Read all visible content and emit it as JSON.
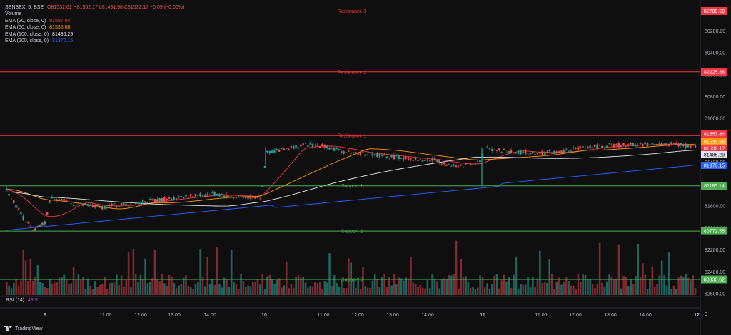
{
  "header": {
    "symbol_line": "SENSEX, 5, BSE",
    "ohlc": "O81532.61 H81552.17 L81491.98 C81532.17 −0.09 (−0.00%)",
    "volume_label": "Volume"
  },
  "ema_legend": [
    {
      "label": "EMA (20, close, 0)",
      "value": "81557.84",
      "color": "#f23645"
    },
    {
      "label": "EMA (50, close, 0)",
      "value": "81535.68",
      "color": "#ff9800"
    },
    {
      "label": "EMA (100, close, 0)",
      "value": "81486.29",
      "color": "#e0e3eb"
    },
    {
      "label": "EMA (200, close, 0)",
      "value": "81370.15",
      "color": "#2962ff"
    }
  ],
  "rsi_label": "RSI (14)",
  "rsi_value": "43.91",
  "brand": "TradingView",
  "colors": {
    "up": "#26a69a",
    "down": "#ef5350",
    "resistance": "#f23645",
    "support": "#4caf50",
    "bg": "#0f0f10"
  },
  "chart_data": {
    "type": "candlestick",
    "y_axis_ticks": [
      80200,
      80400,
      80600,
      80800,
      81000,
      81200,
      81400,
      81600,
      81800,
      82000,
      82200,
      82400,
      82600
    ],
    "ylim": [
      80050,
      82800
    ],
    "x_ticks": [
      "9",
      "11:00",
      "12:00",
      "13:00",
      "14:00",
      "10",
      "11:00",
      "12:00",
      "13:00",
      "14:00",
      "11",
      "11:00",
      "12:00",
      "13:00",
      "14:00",
      "12"
    ],
    "levels": [
      {
        "name": "Resistance 3",
        "value": 82780.9,
        "label": "82780.90",
        "kind": "resistance"
      },
      {
        "name": "Resistance 2",
        "value": 82225.88,
        "label": "82225.88",
        "kind": "resistance"
      },
      {
        "name": "Resistance 1",
        "value": 81643.65,
        "label": "81643.65",
        "kind": "resistance"
      },
      {
        "name": "Support 1",
        "value": 81185.14,
        "label": "81185.14",
        "kind": "support"
      },
      {
        "name": "Support 2",
        "value": 80772.55,
        "label": "80772.55",
        "kind": "support"
      },
      {
        "name": "Support 3",
        "value": 80330.62,
        "label": "80330.62",
        "kind": "support"
      }
    ],
    "price_labels": [
      {
        "label": "81557.84",
        "value": 81557.84,
        "color": "#f23645"
      },
      {
        "label": "81535.68",
        "value": 81535.68,
        "color": "#ff9800"
      },
      {
        "label": "81532.17",
        "value": 81532.17,
        "color": "#f23645"
      },
      {
        "label": "81486.29",
        "value": 81486.29,
        "color": "#e0e3eb"
      },
      {
        "label": "81370.15",
        "value": 81370.15,
        "color": "#2962ff"
      }
    ],
    "axis_decimals": [
      "82600.00",
      "82400.00",
      "82200.00",
      "82000.00",
      "81800.00",
      "81600.00",
      "81400.00",
      "81200.00",
      "81000.00",
      "80800.00",
      "80600.00",
      "80400.00",
      "80200.00"
    ],
    "rsi_axis": [
      "0"
    ]
  }
}
